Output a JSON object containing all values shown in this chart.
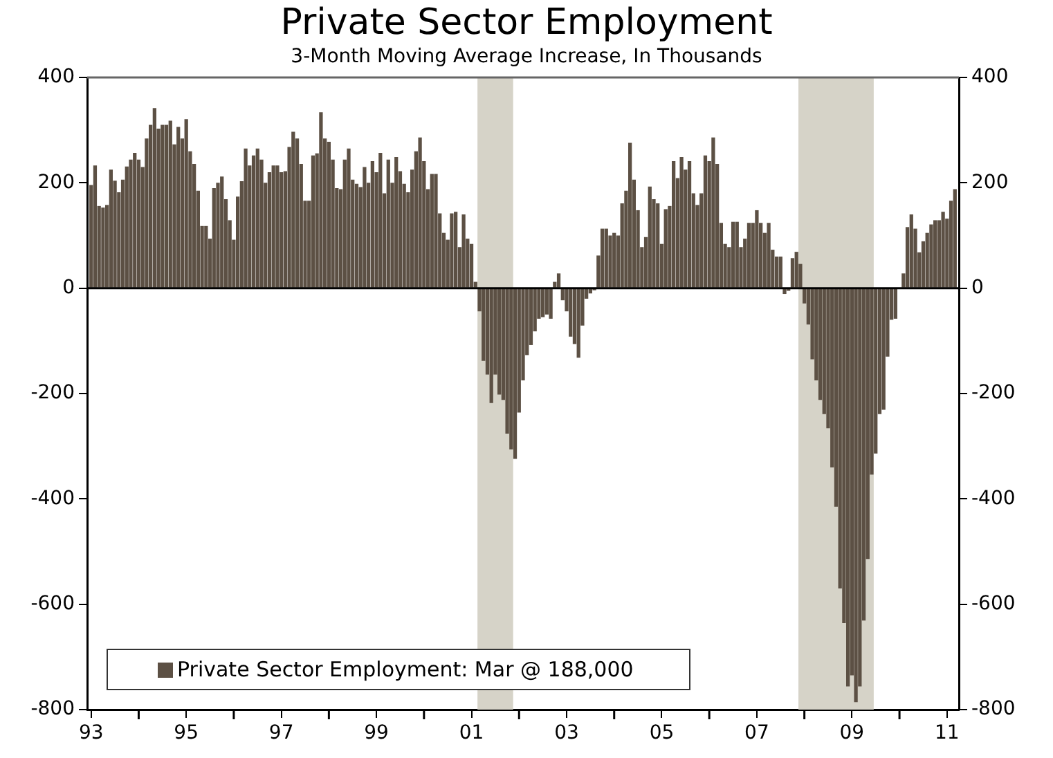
{
  "chart_data": {
    "type": "bar",
    "title": "Private Sector Employment",
    "subtitle": "3-Month Moving Average Increase, In Thousands",
    "x": [
      "1993-01",
      "1993-02",
      "1993-03",
      "1993-04",
      "1993-05",
      "1993-06",
      "1993-07",
      "1993-08",
      "1993-09",
      "1993-10",
      "1993-11",
      "1993-12",
      "1994-01",
      "1994-02",
      "1994-03",
      "1994-04",
      "1994-05",
      "1994-06",
      "1994-07",
      "1994-08",
      "1994-09",
      "1994-10",
      "1994-11",
      "1994-12",
      "1995-01",
      "1995-02",
      "1995-03",
      "1995-04",
      "1995-05",
      "1995-06",
      "1995-07",
      "1995-08",
      "1995-09",
      "1995-10",
      "1995-11",
      "1995-12",
      "1996-01",
      "1996-02",
      "1996-03",
      "1996-04",
      "1996-05",
      "1996-06",
      "1996-07",
      "1996-08",
      "1996-09",
      "1996-10",
      "1996-11",
      "1996-12",
      "1997-01",
      "1997-02",
      "1997-03",
      "1997-04",
      "1997-05",
      "1997-06",
      "1997-07",
      "1997-08",
      "1997-09",
      "1997-10",
      "1997-11",
      "1997-12",
      "1998-01",
      "1998-02",
      "1998-03",
      "1998-04",
      "1998-05",
      "1998-06",
      "1998-07",
      "1998-08",
      "1998-09",
      "1998-10",
      "1998-11",
      "1998-12",
      "1999-01",
      "1999-02",
      "1999-03",
      "1999-04",
      "1999-05",
      "1999-06",
      "1999-07",
      "1999-08",
      "1999-09",
      "1999-10",
      "1999-11",
      "1999-12",
      "2000-01",
      "2000-02",
      "2000-03",
      "2000-04",
      "2000-05",
      "2000-06",
      "2000-07",
      "2000-08",
      "2000-09",
      "2000-10",
      "2000-11",
      "2000-12",
      "2001-01",
      "2001-02",
      "2001-03",
      "2001-04",
      "2001-05",
      "2001-06",
      "2001-07",
      "2001-08",
      "2001-09",
      "2001-10",
      "2001-11",
      "2001-12",
      "2002-01",
      "2002-02",
      "2002-03",
      "2002-04",
      "2002-05",
      "2002-06",
      "2002-07",
      "2002-08",
      "2002-09",
      "2002-10",
      "2002-11",
      "2002-12",
      "2003-01",
      "2003-02",
      "2003-03",
      "2003-04",
      "2003-05",
      "2003-06",
      "2003-07",
      "2003-08",
      "2003-09",
      "2003-10",
      "2003-11",
      "2003-12",
      "2004-01",
      "2004-02",
      "2004-03",
      "2004-04",
      "2004-05",
      "2004-06",
      "2004-07",
      "2004-08",
      "2004-09",
      "2004-10",
      "2004-11",
      "2004-12",
      "2005-01",
      "2005-02",
      "2005-03",
      "2005-04",
      "2005-05",
      "2005-06",
      "2005-07",
      "2005-08",
      "2005-09",
      "2005-10",
      "2005-11",
      "2005-12",
      "2006-01",
      "2006-02",
      "2006-03",
      "2006-04",
      "2006-05",
      "2006-06",
      "2006-07",
      "2006-08",
      "2006-09",
      "2006-10",
      "2006-11",
      "2006-12",
      "2007-01",
      "2007-02",
      "2007-03",
      "2007-04",
      "2007-05",
      "2007-06",
      "2007-07",
      "2007-08",
      "2007-09",
      "2007-10",
      "2007-11",
      "2007-12",
      "2008-01",
      "2008-02",
      "2008-03",
      "2008-04",
      "2008-05",
      "2008-06",
      "2008-07",
      "2008-08",
      "2008-09",
      "2008-10",
      "2008-11",
      "2008-12",
      "2009-01",
      "2009-02",
      "2009-03",
      "2009-04",
      "2009-05",
      "2009-06",
      "2009-07",
      "2009-08",
      "2009-09",
      "2009-10",
      "2009-11",
      "2009-12",
      "2010-01",
      "2010-02",
      "2010-03",
      "2010-04",
      "2010-05",
      "2010-06",
      "2010-07",
      "2010-08",
      "2010-09",
      "2010-10",
      "2010-11",
      "2010-12",
      "2011-01",
      "2011-02",
      "2011-03"
    ],
    "series": [
      {
        "name": "Private Sector Employment: Mar @ 188,000",
        "color": "#5c5044",
        "values": [
          196,
          233,
          156,
          153,
          158,
          225,
          204,
          182,
          206,
          231,
          244,
          257,
          244,
          230,
          284,
          310,
          342,
          303,
          310,
          310,
          318,
          273,
          306,
          284,
          321,
          260,
          236,
          185,
          118,
          118,
          94,
          190,
          200,
          212,
          169,
          129,
          92,
          174,
          203,
          265,
          233,
          252,
          265,
          244,
          200,
          220,
          233,
          233,
          220,
          222,
          268,
          297,
          284,
          236,
          166,
          166,
          252,
          256,
          334,
          284,
          278,
          244,
          190,
          188,
          244,
          265,
          206,
          198,
          192,
          230,
          200,
          241,
          220,
          257,
          180,
          244,
          200,
          249,
          222,
          198,
          182,
          225,
          260,
          286,
          241,
          188,
          217,
          217,
          142,
          105,
          92,
          142,
          145,
          78,
          140,
          94,
          84,
          12,
          -44,
          -138,
          -164,
          -218,
          -164,
          -202,
          -212,
          -276,
          -306,
          -324,
          -236,
          -175,
          -127,
          -108,
          -82,
          -58,
          -55,
          -50,
          -58,
          12,
          28,
          -23,
          -44,
          -92,
          -106,
          -132,
          -71,
          -20,
          -10,
          -4,
          62,
          113,
          113,
          100,
          105,
          100,
          161,
          185,
          276,
          206,
          148,
          78,
          97,
          193,
          169,
          161,
          84,
          150,
          156,
          241,
          209,
          249,
          225,
          241,
          180,
          158,
          180,
          252,
          241,
          286,
          236,
          124,
          84,
          78,
          126,
          126,
          78,
          94,
          124,
          124,
          148,
          124,
          105,
          124,
          73,
          60,
          60,
          -11,
          -5,
          57,
          69,
          46,
          -29,
          -69,
          -135,
          -175,
          -212,
          -239,
          -266,
          -340,
          -415,
          -570,
          -636,
          -756,
          -735,
          -786,
          -756,
          -631,
          -514,
          -354,
          -314,
          -239,
          -231,
          -130,
          -60,
          -58,
          0,
          28,
          116,
          140,
          113,
          68,
          89,
          105,
          121,
          129,
          129,
          145,
          132,
          166,
          188
        ]
      }
    ],
    "xlim": [
      "1992-12",
      "2011-04"
    ],
    "xticks": [
      {
        "value": "1993-01",
        "label": "93"
      },
      {
        "value": "1994-01",
        "label": null
      },
      {
        "value": "1995-01",
        "label": "95"
      },
      {
        "value": "1996-01",
        "label": null
      },
      {
        "value": "1997-01",
        "label": "97"
      },
      {
        "value": "1998-01",
        "label": null
      },
      {
        "value": "1999-01",
        "label": "99"
      },
      {
        "value": "2000-01",
        "label": null
      },
      {
        "value": "2001-01",
        "label": "01"
      },
      {
        "value": "2002-01",
        "label": null
      },
      {
        "value": "2003-01",
        "label": "03"
      },
      {
        "value": "2004-01",
        "label": null
      },
      {
        "value": "2005-01",
        "label": "05"
      },
      {
        "value": "2006-01",
        "label": null
      },
      {
        "value": "2007-01",
        "label": "07"
      },
      {
        "value": "2008-01",
        "label": null
      },
      {
        "value": "2009-01",
        "label": "09"
      },
      {
        "value": "2010-01",
        "label": null
      },
      {
        "value": "2011-01",
        "label": "11"
      }
    ],
    "ylim": [
      -800,
      400
    ],
    "yticks": [
      -800,
      -600,
      -400,
      -200,
      0,
      200,
      400
    ],
    "y2lim": [
      -800,
      400
    ],
    "y2ticks": [
      -800,
      -600,
      -400,
      -200,
      0,
      200,
      400
    ],
    "bands": [
      {
        "axis": "x",
        "from": "2001-03",
        "to": "2001-11",
        "color": "#d6d3c8"
      },
      {
        "axis": "x",
        "from": "2007-12",
        "to": "2009-06",
        "color": "#d6d3c8"
      }
    ],
    "ref_lines": [
      {
        "axis": "y",
        "value": 0,
        "color": "#000000"
      }
    ],
    "legend": "bottom left"
  }
}
